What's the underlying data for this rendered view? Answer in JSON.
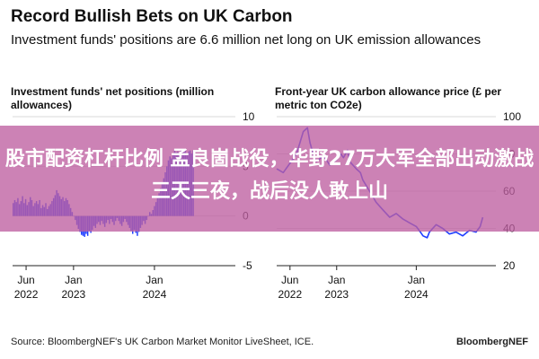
{
  "title": "Record Bullish Bets on UK Carbon",
  "subtitle": "Investment funds' positions are 6.6 million net long on UK emission allowances",
  "overlay_text": "股市配资杠杆比例 孟良崮战役，华野27万大军全部出动激战三天三夜，战后没人敢上山",
  "source": "Source: BloombergNEF's UK Carbon Market Monitor LiveSheet, ICE.",
  "brand": "BloombergNEF",
  "chart_data": [
    {
      "type": "bar",
      "title": "Investment funds' net positions (million allowances)",
      "ylim": [
        -5,
        10
      ],
      "yticks": [
        10,
        5,
        0,
        -5
      ],
      "x_ticks": [
        {
          "date": "2022-06-01",
          "label": "Jun",
          "sub": "2022"
        },
        {
          "date": "2023-01-01",
          "label": "Jan",
          "sub": "2023"
        },
        {
          "date": "2024-01-01",
          "label": "Jan",
          "sub": "2024"
        }
      ],
      "xlim": [
        "2022-04-01",
        "2024-12-31"
      ],
      "color": "#1e3dff",
      "weekly_values": [
        1.3,
        1.6,
        1.4,
        1.8,
        1.2,
        1.5,
        2.0,
        1.3,
        1.7,
        1.1,
        1.4,
        1.9,
        1.6,
        1.0,
        1.3,
        1.5,
        1.2,
        1.6,
        0.8,
        1.1,
        0.9,
        1.3,
        0.7,
        1.0,
        1.2,
        1.5,
        1.8,
        2.1,
        2.6,
        2.3,
        2.0,
        1.7,
        1.9,
        1.5,
        1.8,
        1.6,
        1.2,
        0.8,
        0.4,
        0.0,
        -0.4,
        -0.9,
        -1.3,
        -1.6,
        -1.9,
        -2.0,
        -2.1,
        -1.8,
        -2.0,
        -1.5,
        -1.7,
        -1.4,
        -1.0,
        -1.2,
        -0.8,
        -0.6,
        -0.9,
        -0.5,
        -0.8,
        -1.1,
        -0.7,
        -0.4,
        -0.8,
        -0.3,
        -0.6,
        -0.9,
        -0.5,
        -0.2,
        -0.5,
        -0.8,
        -1.0,
        -0.6,
        -0.3,
        -0.6,
        -0.9,
        -1.2,
        -1.5,
        -1.8,
        -1.4,
        -1.7,
        -2.0,
        -1.6,
        -1.2,
        -0.9,
        -0.5,
        -0.8,
        -0.4,
        0.0,
        0.4,
        0.2,
        0.6,
        1.0,
        1.4,
        1.8,
        2.3,
        2.8,
        3.3,
        3.8,
        4.4,
        5.0,
        5.6,
        6.0,
        5.8,
        6.2,
        6.6,
        6.4,
        6.5,
        6.3,
        6.6,
        6.4,
        6.5,
        6.6,
        6.2,
        6.5,
        6.6,
        6.3,
        6.6
      ]
    },
    {
      "type": "line",
      "title": "Front-year UK carbon allowance price (£ per metric ton CO2e)",
      "ylim": [
        20,
        100
      ],
      "yticks": [
        100,
        80,
        60,
        40,
        20
      ],
      "x_ticks": [
        {
          "date": "2022-06-01",
          "label": "Jun",
          "sub": "2022"
        },
        {
          "date": "2023-01-01",
          "label": "Jan",
          "sub": "2023"
        },
        {
          "date": "2024-01-01",
          "label": "Jan",
          "sub": "2024"
        }
      ],
      "xlim": [
        "2022-04-01",
        "2024-12-31"
      ],
      "color": "#1e3dff",
      "series": [
        {
          "x": [
            "2022-04-01",
            "2022-05-01",
            "2022-06-01",
            "2022-07-01",
            "2022-08-01",
            "2022-08-20",
            "2022-09-01",
            "2022-09-20",
            "2022-10-01",
            "2022-11-01",
            "2022-12-01",
            "2023-01-01",
            "2023-01-20",
            "2023-02-01",
            "2023-02-20",
            "2023-03-01",
            "2023-04-01",
            "2023-04-20",
            "2023-05-01",
            "2023-06-01",
            "2023-07-01",
            "2023-08-01",
            "2023-09-01",
            "2023-10-01",
            "2023-11-01",
            "2023-12-01",
            "2024-01-01",
            "2024-01-20",
            "2024-02-01",
            "2024-02-20",
            "2024-03-01",
            "2024-04-01",
            "2024-05-01",
            "2024-06-01",
            "2024-07-01",
            "2024-08-01",
            "2024-09-01",
            "2024-10-01",
            "2024-10-20",
            "2024-11-01"
          ],
          "y": [
            72,
            70,
            75,
            80,
            92,
            94,
            86,
            78,
            76,
            79,
            74,
            77,
            80,
            78,
            82,
            76,
            72,
            70,
            66,
            60,
            54,
            50,
            46,
            48,
            45,
            43,
            41,
            38,
            36,
            35,
            38,
            42,
            40,
            37,
            38,
            36,
            39,
            38,
            41,
            46
          ]
        }
      ]
    }
  ]
}
